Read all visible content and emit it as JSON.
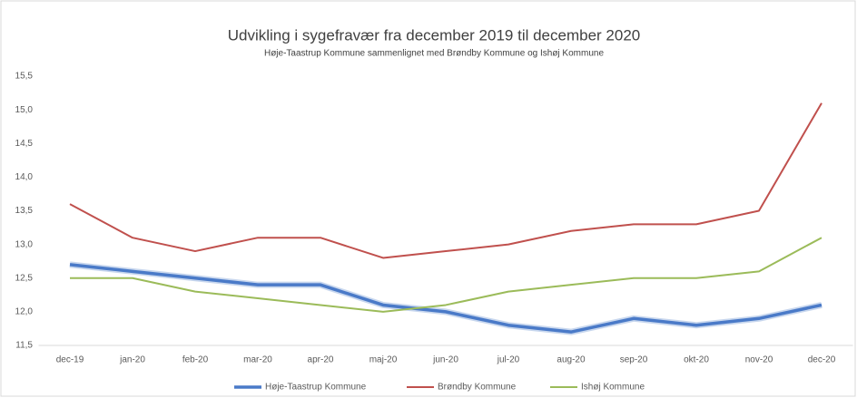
{
  "chart_data": {
    "type": "line",
    "title": "Udvikling i sygefravær fra december 2019 til december 2020",
    "subtitle": "Høje-Taastrup Kommune  sammenlignet med Brøndby Kommune  og Ishøj Kommune",
    "categories": [
      "dec-19",
      "jan-20",
      "feb-20",
      "mar-20",
      "apr-20",
      "maj-20",
      "jun-20",
      "jul-20",
      "aug-20",
      "sep-20",
      "okt-20",
      "nov-20",
      "dec-20"
    ],
    "series": [
      {
        "name": "Høje-Taastrup Kommune",
        "color": "#4a7ac8",
        "values": [
          12.7,
          12.6,
          12.5,
          12.4,
          12.4,
          12.1,
          12.0,
          11.8,
          11.7,
          11.9,
          11.8,
          11.9,
          12.1
        ]
      },
      {
        "name": "Brøndby Kommune",
        "color": "#c0504d",
        "values": [
          13.6,
          13.1,
          12.9,
          13.1,
          13.1,
          12.8,
          12.9,
          13.0,
          13.2,
          13.3,
          13.3,
          13.5,
          15.1
        ]
      },
      {
        "name": "Ishøj Kommune",
        "color": "#9bbb59",
        "values": [
          12.5,
          12.5,
          12.3,
          12.2,
          12.1,
          12.0,
          12.1,
          12.3,
          12.4,
          12.5,
          12.5,
          12.6,
          13.1
        ]
      }
    ],
    "ylim": [
      11.5,
      15.5
    ],
    "yticks": [
      {
        "value": 11.5,
        "label": "11,5"
      },
      {
        "value": 12.0,
        "label": "12,0"
      },
      {
        "value": 12.5,
        "label": "12,5"
      },
      {
        "value": 13.0,
        "label": "13,0"
      },
      {
        "value": 13.5,
        "label": "13,5"
      },
      {
        "value": 14.0,
        "label": "14,0"
      },
      {
        "value": 14.5,
        "label": "14,5"
      },
      {
        "value": 15.0,
        "label": "15,0"
      },
      {
        "value": 15.5,
        "label": "15,5"
      }
    ],
    "grid": false,
    "legend": "bottom"
  }
}
